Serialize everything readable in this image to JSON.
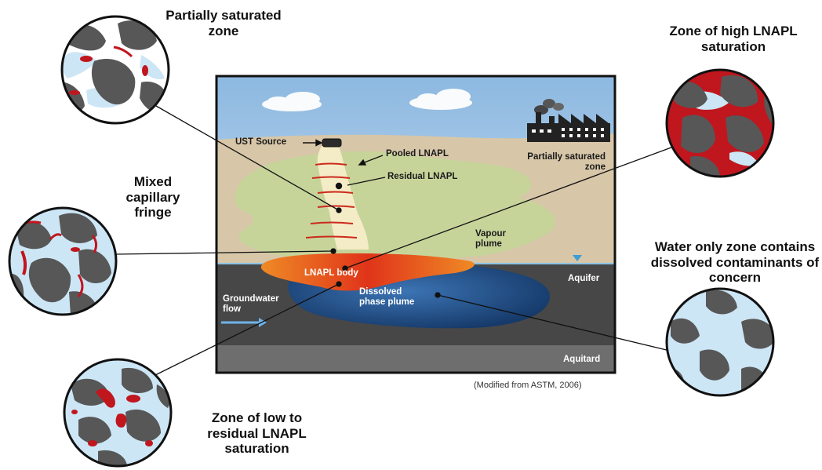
{
  "zones": {
    "partially_saturated": "Partially saturated zone",
    "high_lnapl": "Zone of high LNAPL saturation",
    "mixed_fringe": "Mixed capillary fringe",
    "water_only": "Water only zone contains dissolved contaminants of concern",
    "low_residual": "Zone of low to residual LNAPL saturation"
  },
  "diagram": {
    "ust_source": "UST Source",
    "pooled_lnapl": "Pooled LNAPL",
    "residual_lnapl": "Residual LNAPL",
    "partially_saturated": "Partially saturated zone",
    "vapour_plume": "Vapour plume",
    "lnapl_body": "LNAPL body",
    "aquifer": "Aquifer",
    "groundwater_flow": "Groundwater flow",
    "dissolved_plume": "Dissolved phase plume",
    "aquitard": "Aquitard"
  },
  "credit": "(Modified from ASTM, 2006)",
  "colors": {
    "sky_top": "#9fc4e6",
    "soil": "#d7c6a8",
    "vapour": "#c6d49a",
    "aquifer": "#474747",
    "aquitard": "#6e6e6e",
    "lnapl": "#e04a1a",
    "plume": "#1f4e86",
    "water": "#cde6f5",
    "grain": "#575757",
    "residual": "#c0161e"
  }
}
